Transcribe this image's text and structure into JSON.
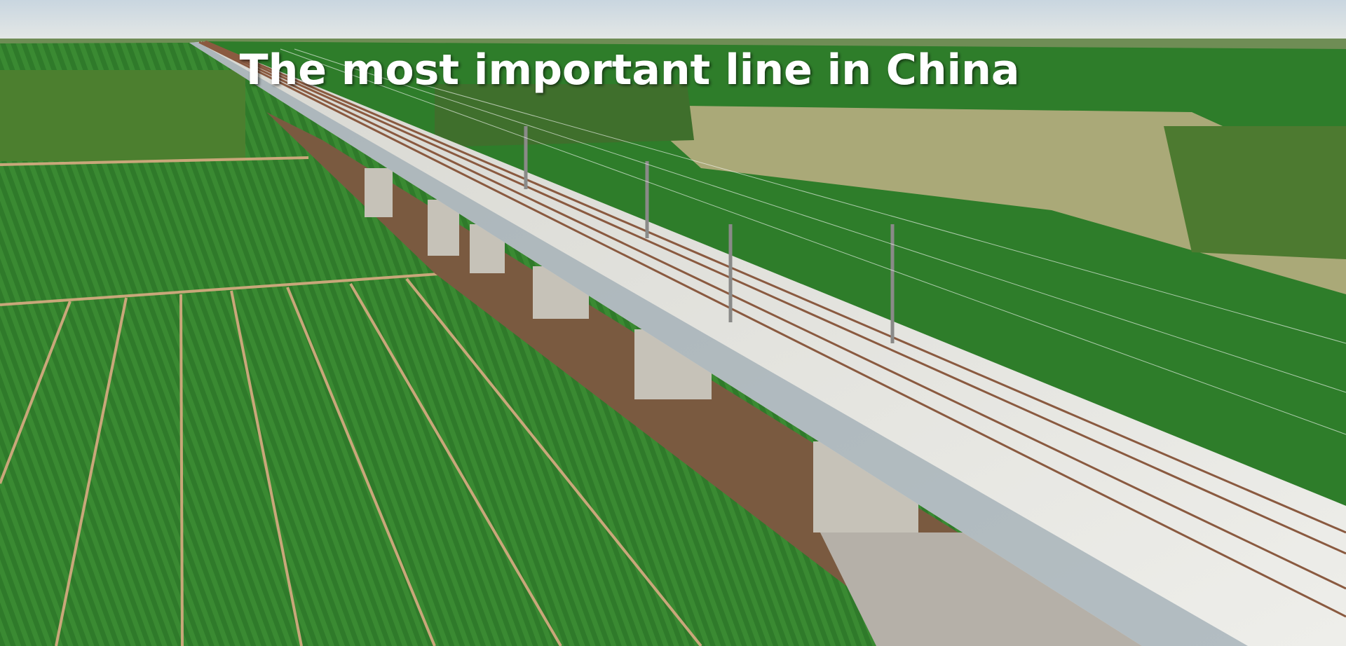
{
  "title": "The most important line in China"
}
